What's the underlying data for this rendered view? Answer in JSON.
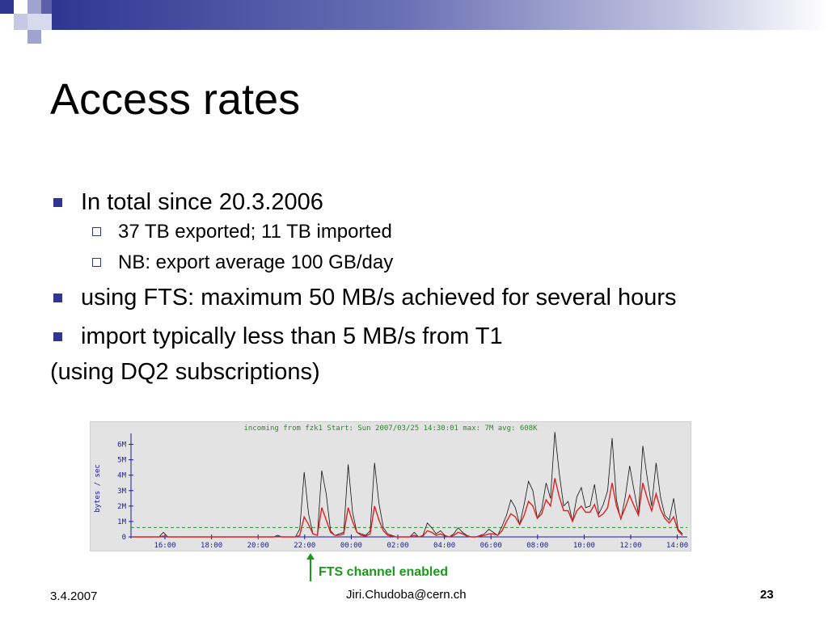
{
  "slide": {
    "title": "Access rates",
    "bullets": [
      {
        "text": "In total since 20.3.2006",
        "sub": [
          "37 TB exported; 11 TB imported",
          "NB: export average 100 GB/day"
        ]
      },
      {
        "text": "using FTS: maximum 50 MB/s achieved for several hours",
        "sub": []
      },
      {
        "text": "import typically less than 5 MB/s from T1",
        "sub": []
      }
    ],
    "note": "(using DQ2 subscriptions)",
    "annotation": "FTS channel enabled",
    "footer": {
      "date": "3.4.2007",
      "email": "Jiri.Chudoba@cern.ch",
      "page": "23"
    }
  },
  "colors": {
    "accent": "#2e3692",
    "annotation": "#1a9a1a",
    "chart_bg": "#e3e3e3"
  },
  "chart_data": {
    "type": "line",
    "title": "incoming from fzk1 Start: Sun 2007/03/25 14:30:01 max: 7M avg: 608K",
    "ylabel": "bytes / sec",
    "y_ticks": [
      "0",
      "1M",
      "2M",
      "3M",
      "4M",
      "5M",
      "6M"
    ],
    "x_ticks": [
      "16:00",
      "18:00",
      "20:00",
      "22:00",
      "00:00",
      "02:00",
      "04:00",
      "06:00",
      "08:00",
      "10:00",
      "12:00",
      "14:00"
    ],
    "ylim": [
      0,
      6.5
    ],
    "average_line": 0.608,
    "series": [
      {
        "values": [
          0,
          0,
          0,
          0,
          0,
          0,
          0,
          0.3,
          0,
          0,
          0,
          0,
          0,
          0,
          0,
          0,
          0,
          0,
          0,
          0,
          0,
          0,
          0,
          0,
          0,
          0,
          0,
          0,
          0,
          0,
          0,
          0,
          0,
          0.1,
          0,
          0,
          0,
          0,
          0.5,
          4.2,
          1.5,
          0.2,
          0.1,
          4.3,
          2.8,
          0.4,
          0.1,
          0.2,
          0.3,
          4.7,
          1.6,
          0.3,
          0.2,
          0.1,
          0.4,
          4.8,
          2.2,
          0.6,
          0.2,
          0.1,
          0,
          0,
          0,
          0,
          0.3,
          0,
          0.1,
          0.9,
          0.6,
          0.2,
          0.4,
          0.1,
          0,
          0.2,
          0.6,
          0.3,
          0.1,
          0,
          0,
          0.1,
          0.2,
          0.5,
          0.3,
          0.1,
          0.7,
          1.4,
          2.4,
          1.9,
          0.8,
          2.1,
          3.6,
          3.0,
          1.2,
          1.8,
          3.5,
          2.5,
          6.8,
          4.1,
          2.0,
          2.3,
          1.0,
          2.6,
          3.2,
          1.9,
          2.0,
          3.4,
          1.5,
          2.1,
          3.0,
          6.4,
          2.4,
          1.1,
          2.6,
          4.6,
          3.0,
          1.5,
          5.9,
          3.8,
          2.0,
          4.8,
          2.6,
          1.4,
          1.1,
          2.5,
          0.5,
          0.2
        ]
      },
      {
        "values": [
          0,
          0,
          0,
          0,
          0,
          0,
          0,
          0.05,
          0,
          0,
          0,
          0,
          0,
          0,
          0,
          0,
          0,
          0,
          0,
          0,
          0,
          0,
          0,
          0,
          0,
          0,
          0,
          0,
          0,
          0,
          0,
          0,
          0,
          0.02,
          0,
          0,
          0,
          0,
          0.1,
          1.3,
          0.8,
          0.2,
          0.1,
          1.9,
          1.1,
          0.3,
          0.1,
          0.1,
          0.2,
          1.9,
          1.0,
          0.3,
          0.1,
          0.05,
          0.2,
          2.0,
          1.1,
          0.4,
          0.1,
          0.05,
          0,
          0,
          0,
          0,
          0.1,
          0,
          0.05,
          0.4,
          0.3,
          0.1,
          0.2,
          0.05,
          0,
          0.1,
          0.3,
          0.2,
          0.05,
          0,
          0,
          0.05,
          0.1,
          0.2,
          0.2,
          0.1,
          0.4,
          1.0,
          1.5,
          1.3,
          0.8,
          1.4,
          2.3,
          2.0,
          1.2,
          1.5,
          2.4,
          2.0,
          3.8,
          2.6,
          1.7,
          1.7,
          1.0,
          1.7,
          2.0,
          1.6,
          1.6,
          2.1,
          1.3,
          1.5,
          1.9,
          3.5,
          2.0,
          1.2,
          1.9,
          2.7,
          2.0,
          1.4,
          3.5,
          2.5,
          1.7,
          2.8,
          1.8,
          1.2,
          0.9,
          1.3,
          0.4,
          0.1
        ]
      }
    ]
  }
}
